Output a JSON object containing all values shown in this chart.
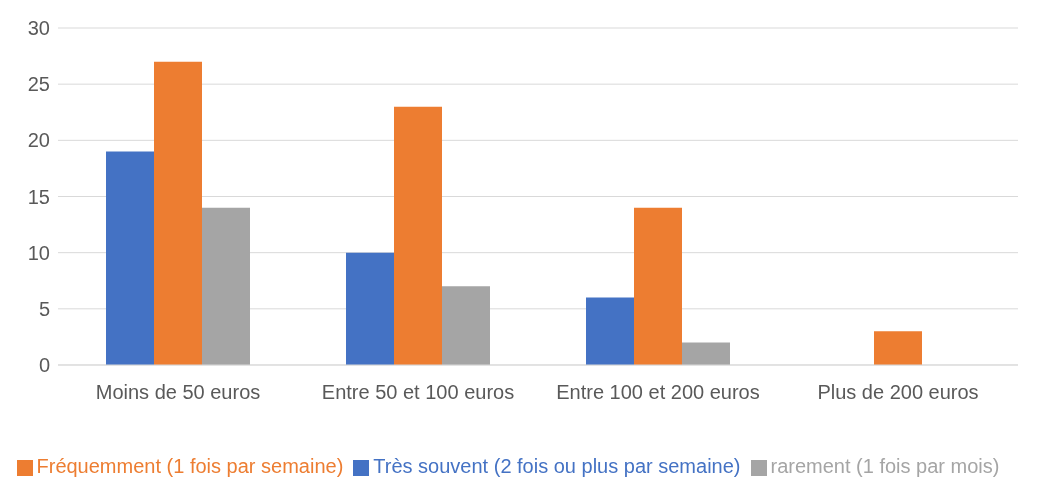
{
  "chart_data": {
    "type": "bar",
    "categories": [
      "Moins de 50 euros",
      "Entre 50 et 100 euros",
      "Entre 100 et 200 euros",
      "Plus de 200 euros"
    ],
    "series": [
      {
        "name": "Très souvent (2 fois ou plus par semaine)",
        "color": "#4472c4",
        "values": [
          19,
          10,
          6,
          0
        ]
      },
      {
        "name": "Fréquemment (1 fois par semaine)",
        "color": "#ed7d31",
        "values": [
          27,
          23,
          14,
          3
        ]
      },
      {
        "name": "rarement (1 fois par mois)",
        "color": "#a5a5a5",
        "values": [
          14,
          7,
          2,
          0
        ]
      }
    ],
    "ylim": [
      0,
      30
    ],
    "yticks": [
      0,
      5,
      10,
      15,
      20,
      25,
      30
    ],
    "grid": "y",
    "legend": "bottom"
  }
}
